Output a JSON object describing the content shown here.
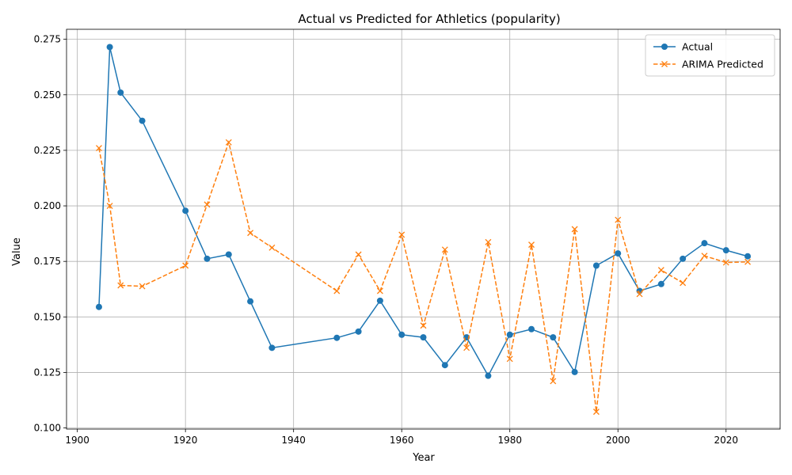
{
  "chart_data": {
    "type": "line",
    "title": "Actual vs Predicted for Athletics (popularity)",
    "xlabel": "Year",
    "ylabel": "Value",
    "xlim": [
      1898,
      2030
    ],
    "ylim": [
      0.0995,
      0.2795
    ],
    "xticks": [
      1900,
      1920,
      1940,
      1960,
      1980,
      2000,
      2020
    ],
    "yticks": [
      0.1,
      0.125,
      0.15,
      0.175,
      0.2,
      0.225,
      0.25,
      0.275
    ],
    "grid": true,
    "legend_position": "top-right",
    "series": [
      {
        "name": "Actual",
        "color": "#1f77b4",
        "marker": "circle",
        "linestyle": "solid",
        "x": [
          1904,
          1906,
          1908,
          1912,
          1920,
          1924,
          1928,
          1932,
          1936,
          1948,
          1952,
          1956,
          1960,
          1964,
          1968,
          1972,
          1976,
          1980,
          1984,
          1988,
          1992,
          1996,
          2000,
          2004,
          2008,
          2012,
          2016,
          2020,
          2024
        ],
        "y": [
          0.1545,
          0.2715,
          0.251,
          0.2383,
          0.1978,
          0.1762,
          0.1781,
          0.157,
          0.1361,
          0.1406,
          0.1434,
          0.1573,
          0.142,
          0.1408,
          0.1283,
          0.1408,
          0.1235,
          0.142,
          0.1445,
          0.1408,
          0.1252,
          0.1731,
          0.1786,
          0.1617,
          0.1648,
          0.1762,
          0.1832,
          0.18,
          0.1773
        ]
      },
      {
        "name": "ARIMA Predicted",
        "color": "#ff7f0e",
        "marker": "x",
        "linestyle": "dashed",
        "x": [
          1904,
          1906,
          1908,
          1912,
          1920,
          1924,
          1928,
          1932,
          1936,
          1948,
          1952,
          1956,
          1960,
          1964,
          1968,
          1972,
          1976,
          1980,
          1984,
          1988,
          1992,
          1996,
          2000,
          2004,
          2008,
          2012,
          2016,
          2020,
          2024
        ],
        "y": [
          0.226,
          0.2,
          0.1642,
          0.1638,
          0.1731,
          0.2006,
          0.2286,
          0.1878,
          0.1812,
          0.1617,
          0.1781,
          0.1617,
          0.187,
          0.1461,
          0.1803,
          0.1361,
          0.1837,
          0.1311,
          0.1825,
          0.1211,
          0.1895,
          0.1073,
          0.1937,
          0.1603,
          0.1711,
          0.1653,
          0.1775,
          0.1745,
          0.1748
        ]
      }
    ]
  }
}
